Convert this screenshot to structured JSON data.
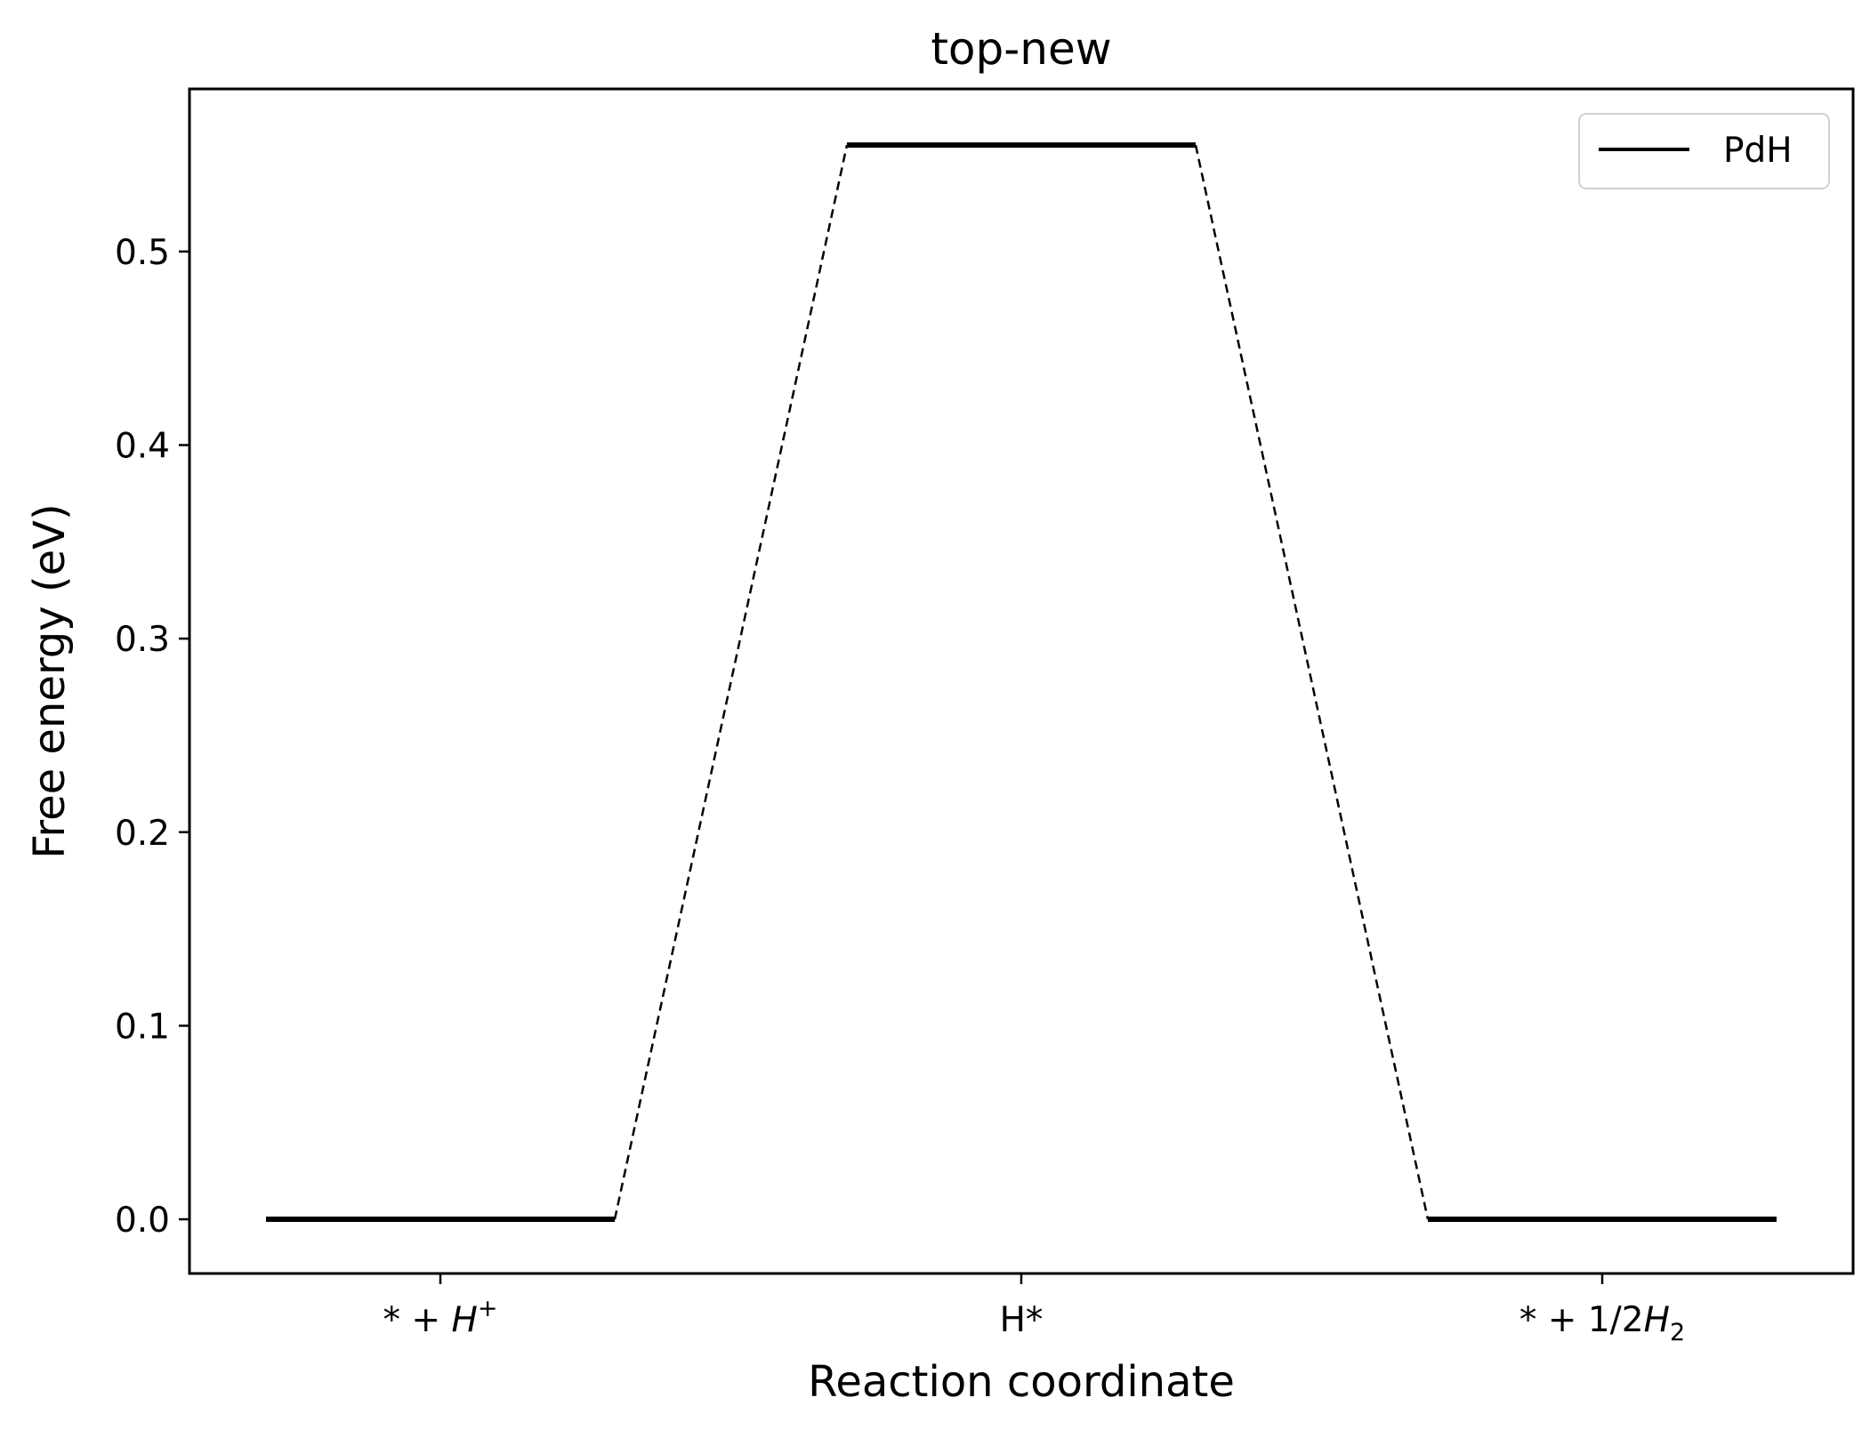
{
  "chart_data": {
    "type": "line",
    "title": "top-new",
    "xlabel": "Reaction coordinate",
    "ylabel": "Free energy (eV)",
    "categories": [
      {
        "base": "* + ",
        "italic": "H",
        "sup": "+",
        "sub": ""
      },
      {
        "base": "H*",
        "italic": "",
        "sup": "",
        "sub": ""
      },
      {
        "base": "* + 1/2",
        "italic": "H",
        "sup": "",
        "sub": "2"
      }
    ],
    "series": [
      {
        "name": "PdH",
        "values": [
          0.0,
          0.555,
          0.0
        ],
        "color": "#000000"
      }
    ],
    "connector_style": "dashed",
    "ylim": [
      -0.028,
      0.584
    ],
    "yticks": [
      "0.0",
      "0.1",
      "0.2",
      "0.3",
      "0.4",
      "0.5"
    ],
    "grid": false,
    "legend_position": "top-right"
  }
}
